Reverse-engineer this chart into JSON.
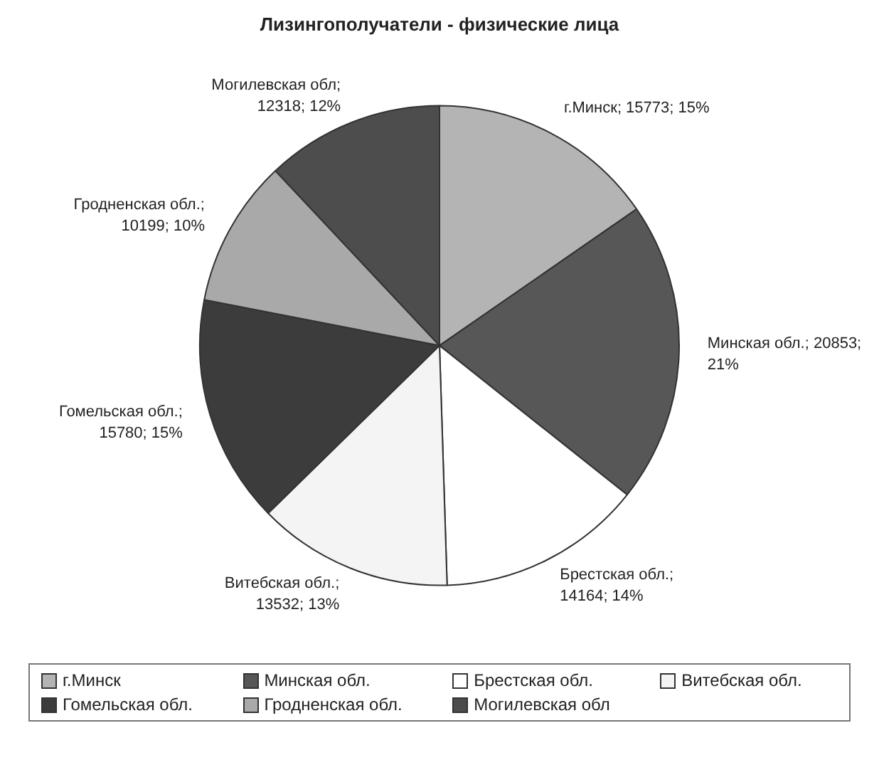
{
  "chart_data": {
    "type": "pie",
    "title": "Лизингополучатели - физические лица",
    "categories": [
      "г.Минск",
      "Минская обл.",
      "Брестская обл.",
      "Витебская обл.",
      "Гомельская обл.",
      "Гродненская обл.",
      "Могилевская обл"
    ],
    "values": [
      15773,
      20853,
      14164,
      13532,
      15780,
      10199,
      12318
    ],
    "colors": [
      "#b4b4b4",
      "#575757",
      "#ffffff",
      "#f4f4f4",
      "#3c3c3c",
      "#a9a9a9",
      "#4d4d4d"
    ],
    "value_labels": [
      "г.Минск; 15773; 15%",
      "Минская обл.; 20853; 21%",
      "Брестская обл.; 14164; 14%",
      "Витебская обл.; 13532; 13%",
      "Гомельская обл.; 15780; 15%",
      "Гродненская обл.; 10199; 10%",
      "Могилевская обл; 12318; 12%"
    ],
    "legend": "bottom"
  }
}
